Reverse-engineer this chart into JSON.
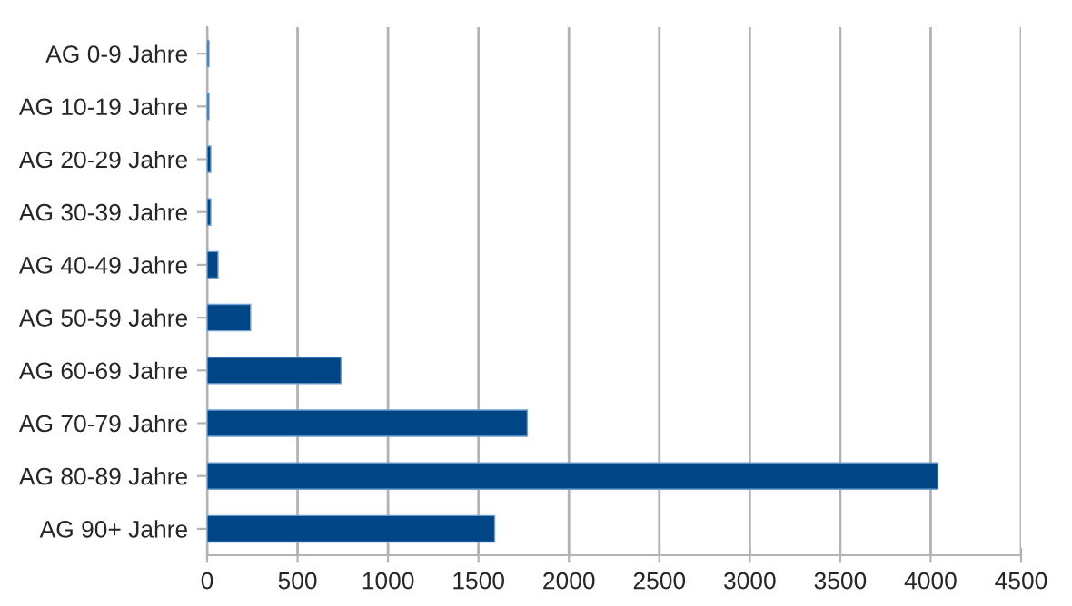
{
  "chart_data": {
    "type": "bar",
    "orientation": "horizontal",
    "categories": [
      "AG 0-9 Jahre",
      "AG 10-19 Jahre",
      "AG 20-29 Jahre",
      "AG 30-39 Jahre",
      "AG 40-49 Jahre",
      "AG 50-59 Jahre",
      "AG 60-69 Jahre",
      "AG 70-79 Jahre",
      "AG 80-89 Jahre",
      "AG 90+ Jahre"
    ],
    "values": [
      10,
      10,
      20,
      20,
      60,
      240,
      740,
      1770,
      4040,
      1590
    ],
    "color": "#004586",
    "xlim": [
      0,
      4500
    ],
    "xticks": [
      0,
      500,
      1000,
      1500,
      2000,
      2500,
      3000,
      3500,
      4000,
      4500
    ],
    "grid": "x"
  }
}
